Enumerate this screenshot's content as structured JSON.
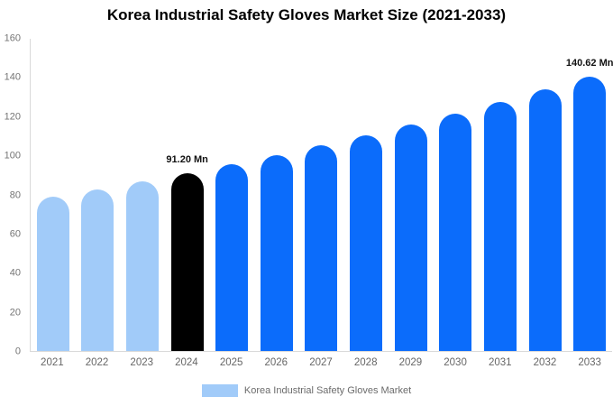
{
  "title": "Korea Industrial Safety Gloves Market Size (2021-2033)",
  "legend": {
    "label": "Korea Industrial Safety Gloves Market",
    "swatch_color": "#A1CBF9"
  },
  "colors": {
    "light_blue": "#A1CBF9",
    "bright_blue": "#0B6CFB",
    "highlight_black": "#000000",
    "axis_line": "#d9d9d9",
    "tick_text": "#757575",
    "background": "#ffffff"
  },
  "chart_data": {
    "type": "bar",
    "title": "Korea Industrial Safety Gloves Market Size (2021-2033)",
    "xlabel": "",
    "ylabel": "",
    "ylim": [
      0,
      160
    ],
    "yticks": [
      0,
      20,
      40,
      60,
      80,
      100,
      120,
      140,
      160
    ],
    "grid": false,
    "legend_position": "bottom",
    "categories": [
      "2021",
      "2022",
      "2023",
      "2024",
      "2025",
      "2026",
      "2027",
      "2028",
      "2029",
      "2030",
      "2031",
      "2032",
      "2033"
    ],
    "values": [
      78.94,
      82.83,
      86.91,
      91.2,
      95.7,
      100.42,
      105.37,
      110.56,
      116.01,
      121.73,
      127.73,
      134.02,
      140.62
    ],
    "point_colors": [
      "#A1CBF9",
      "#A1CBF9",
      "#A1CBF9",
      "#000000",
      "#0B6CFB",
      "#0B6CFB",
      "#0B6CFB",
      "#0B6CFB",
      "#0B6CFB",
      "#0B6CFB",
      "#0B6CFB",
      "#0B6CFB",
      "#0B6CFB"
    ],
    "annotations": [
      {
        "category": "2024",
        "text": "91.20 Mn"
      },
      {
        "category": "2033",
        "text": "140.62 Mn"
      }
    ]
  }
}
